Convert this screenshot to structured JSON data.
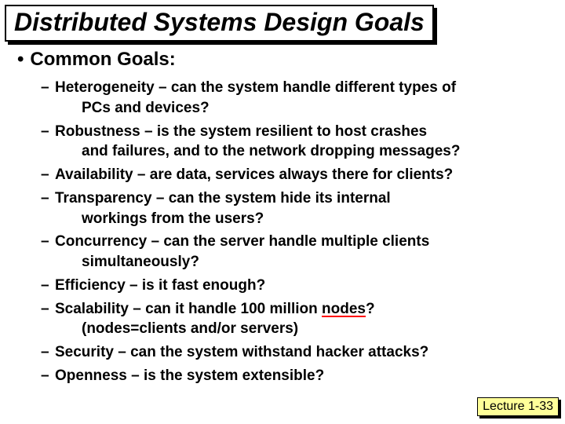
{
  "title": "Distributed Systems Design Goals",
  "section": "Common Goals:",
  "items": [
    {
      "term": "Heterogeneity",
      "desc": " – can the system handle different types of",
      "cont": "PCs and devices?",
      "underline": false
    },
    {
      "term": "Robustness",
      "desc": " – is the system resilient to host crashes",
      "cont": "and failures, and to the network dropping messages?",
      "underline": false
    },
    {
      "term": "Availability",
      "desc": " – are data, services always there for clients?",
      "cont": "",
      "underline": false
    },
    {
      "term": "Transparency",
      "desc": " – can the system hide its internal",
      "cont": "workings from the users?",
      "underline": false
    },
    {
      "term": "Concurrency",
      "desc": " – can the server handle multiple clients",
      "cont": "simultaneously?",
      "underline": false
    },
    {
      "term": "Efficiency",
      "desc": " – is it fast enough?",
      "cont": "",
      "underline": false
    },
    {
      "term": "Scalability",
      "desc_pre": " – can it handle 100 million ",
      "desc_u": "nodes",
      "desc_post": "?",
      "cont": "(nodes=clients and/or servers)",
      "underline": true
    },
    {
      "term": "Security",
      "desc": " – can the system withstand hacker attacks?",
      "cont": "",
      "underline": false
    },
    {
      "term": "Openness",
      "desc": " – is the system extensible?",
      "cont": "",
      "underline": false
    }
  ],
  "footer": "Lecture 1-33",
  "colors": {
    "underline": "#ff0000",
    "footer_bg": "#ffff99",
    "text": "#000000",
    "bg": "#ffffff"
  },
  "fonts": {
    "title_size": 32,
    "section_size": 24,
    "body_size": 19,
    "footer_size": 16
  }
}
